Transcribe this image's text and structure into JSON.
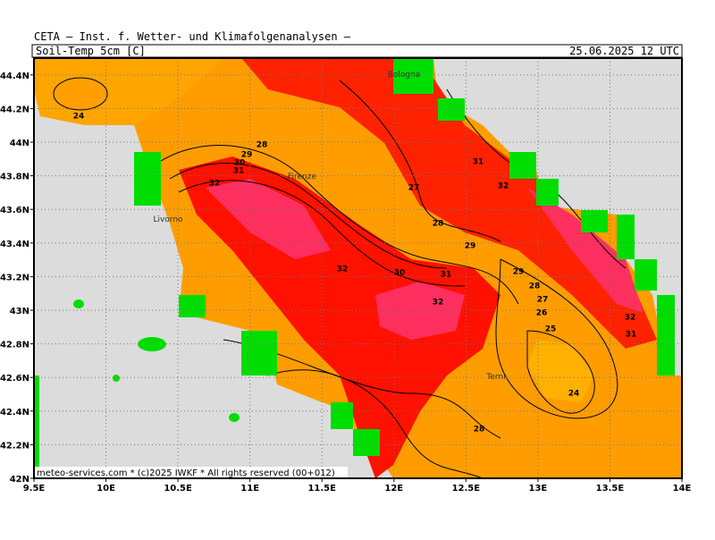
{
  "header": {
    "institute": "CETA — Inst. f. Wetter- und Klimafolgenanalysen —",
    "parameter": "Soil-Temp_5cm [C]",
    "valid_time": "25.06.2025 12 UTC"
  },
  "map": {
    "lonlim": [
      9.5,
      14
    ],
    "latlim": [
      42,
      44.5
    ],
    "lonticks": [
      {
        "value": 9.5,
        "label": "9.5E"
      },
      {
        "value": 10,
        "label": "10E"
      },
      {
        "value": 10.5,
        "label": "10.5E"
      },
      {
        "value": 11,
        "label": "11E"
      },
      {
        "value": 11.5,
        "label": "11.5E"
      },
      {
        "value": 12,
        "label": "12E"
      },
      {
        "value": 12.5,
        "label": "12.5E"
      },
      {
        "value": 13,
        "label": "13E"
      },
      {
        "value": 13.5,
        "label": "13.5E"
      },
      {
        "value": 14,
        "label": "14E"
      }
    ],
    "latticks": [
      {
        "value": 42,
        "label": "42N"
      },
      {
        "value": 42.2,
        "label": "42.2N"
      },
      {
        "value": 42.4,
        "label": "42.4N"
      },
      {
        "value": 42.6,
        "label": "42.6N"
      },
      {
        "value": 42.8,
        "label": "42.8N"
      },
      {
        "value": 43,
        "label": "43N"
      },
      {
        "value": 43.2,
        "label": "43.2N"
      },
      {
        "value": 43.4,
        "label": "43.4N"
      },
      {
        "value": 43.6,
        "label": "43.6N"
      },
      {
        "value": 43.8,
        "label": "43.8N"
      },
      {
        "value": 44,
        "label": "44N"
      },
      {
        "value": 44.2,
        "label": "44.2N"
      },
      {
        "value": 44.4,
        "label": "44.4N"
      }
    ],
    "cities": [
      "Bologna",
      "Firenze",
      "Livorno",
      "Terni"
    ],
    "contour_labels": [
      24,
      28,
      29,
      30,
      31,
      32,
      27,
      28,
      29,
      32,
      30,
      31,
      32,
      31,
      32,
      29,
      28,
      27,
      26,
      25,
      24,
      28,
      32,
      31
    ],
    "footer": "meteo-services.com * (c)2025 IWKF * All rights reserved (00+012)"
  }
}
